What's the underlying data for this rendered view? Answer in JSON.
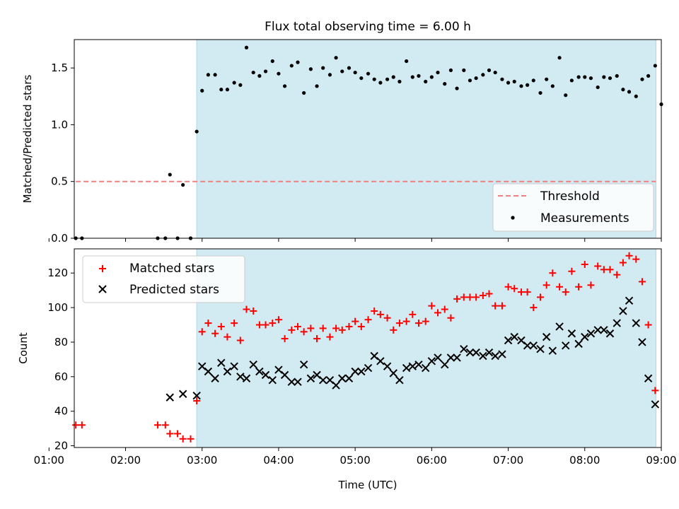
{
  "title": "Flux total observing time = 6.00 h",
  "colors": {
    "shade": "#add8e6",
    "threshold": "#f08080",
    "matched": "#ff0000",
    "predicted": "#000000",
    "measurement": "#000000"
  },
  "chart_data": [
    {
      "type": "scatter",
      "ylabel": "Matched/Predicted stars",
      "xlim": [
        1.33,
        9.0
      ],
      "ylim": [
        0,
        1.75
      ],
      "yticks": [
        "0.0",
        "0.5",
        "1.0",
        "1.5"
      ],
      "ytick_values": [
        0,
        0.5,
        1.0,
        1.5
      ],
      "shaded_region": [
        2.93,
        8.93
      ],
      "threshold": {
        "value": 0.5,
        "x": [
          1.35,
          8.93
        ]
      },
      "legend": {
        "position": "lower right",
        "entries": [
          "Threshold",
          "Measurements"
        ]
      },
      "series": [
        {
          "name": "Measurements",
          "marker": "dot",
          "points": [
            [
              1.35,
              0.0
            ],
            [
              1.43,
              0.0
            ],
            [
              2.42,
              0.0
            ],
            [
              2.52,
              0.0
            ],
            [
              2.58,
              0.56
            ],
            [
              2.68,
              0.0
            ],
            [
              2.75,
              0.47
            ],
            [
              2.85,
              0.0
            ],
            [
              2.93,
              0.94
            ],
            [
              3.0,
              1.3
            ],
            [
              3.08,
              1.44
            ],
            [
              3.17,
              1.44
            ],
            [
              3.25,
              1.31
            ],
            [
              3.33,
              1.31
            ],
            [
              3.42,
              1.37
            ],
            [
              3.5,
              1.35
            ],
            [
              3.58,
              1.68
            ],
            [
              3.67,
              1.46
            ],
            [
              3.75,
              1.43
            ],
            [
              3.83,
              1.47
            ],
            [
              3.92,
              1.56
            ],
            [
              4.0,
              1.45
            ],
            [
              4.08,
              1.34
            ],
            [
              4.17,
              1.52
            ],
            [
              4.25,
              1.55
            ],
            [
              4.33,
              1.28
            ],
            [
              4.42,
              1.49
            ],
            [
              4.5,
              1.34
            ],
            [
              4.58,
              1.5
            ],
            [
              4.67,
              1.44
            ],
            [
              4.75,
              1.59
            ],
            [
              4.83,
              1.47
            ],
            [
              4.92,
              1.5
            ],
            [
              5.0,
              1.46
            ],
            [
              5.08,
              1.41
            ],
            [
              5.17,
              1.45
            ],
            [
              5.25,
              1.4
            ],
            [
              5.33,
              1.37
            ],
            [
              5.42,
              1.4
            ],
            [
              5.5,
              1.42
            ],
            [
              5.58,
              1.38
            ],
            [
              5.67,
              1.56
            ],
            [
              5.75,
              1.42
            ],
            [
              5.83,
              1.43
            ],
            [
              5.92,
              1.38
            ],
            [
              6.0,
              1.42
            ],
            [
              6.08,
              1.46
            ],
            [
              6.17,
              1.36
            ],
            [
              6.25,
              1.48
            ],
            [
              6.33,
              1.32
            ],
            [
              6.42,
              1.48
            ],
            [
              6.5,
              1.39
            ],
            [
              6.58,
              1.41
            ],
            [
              6.67,
              1.44
            ],
            [
              6.75,
              1.48
            ],
            [
              6.83,
              1.46
            ],
            [
              6.92,
              1.4
            ],
            [
              7.0,
              1.37
            ],
            [
              7.08,
              1.38
            ],
            [
              7.17,
              1.34
            ],
            [
              7.25,
              1.35
            ],
            [
              7.33,
              1.39
            ],
            [
              7.42,
              1.28
            ],
            [
              7.5,
              1.4
            ],
            [
              7.58,
              1.34
            ],
            [
              7.67,
              1.59
            ],
            [
              7.75,
              1.26
            ],
            [
              7.83,
              1.39
            ],
            [
              7.92,
              1.42
            ],
            [
              8.0,
              1.42
            ],
            [
              8.08,
              1.41
            ],
            [
              8.17,
              1.33
            ],
            [
              8.25,
              1.42
            ],
            [
              8.33,
              1.41
            ],
            [
              8.42,
              1.43
            ],
            [
              8.5,
              1.31
            ],
            [
              8.58,
              1.29
            ],
            [
              8.67,
              1.25
            ],
            [
              8.75,
              1.4
            ],
            [
              8.83,
              1.43
            ],
            [
              8.92,
              1.52
            ],
            [
              9.0,
              1.18
            ]
          ]
        }
      ]
    },
    {
      "type": "scatter",
      "xlabel": "Time (UTC)",
      "ylabel": "Count",
      "xlim": [
        1.33,
        9.0
      ],
      "ylim": [
        19,
        134
      ],
      "xticks": [
        "01:00",
        "02:00",
        "03:00",
        "04:00",
        "05:00",
        "06:00",
        "07:00",
        "08:00",
        "09:00"
      ],
      "xtick_values": [
        1,
        2,
        3,
        4,
        5,
        6,
        7,
        8,
        9
      ],
      "yticks": [
        "20",
        "40",
        "60",
        "80",
        "100",
        "120"
      ],
      "ytick_values": [
        20,
        40,
        60,
        80,
        100,
        120
      ],
      "shaded_region": [
        2.93,
        8.93
      ],
      "legend": {
        "position": "upper left",
        "entries": [
          "Matched stars",
          "Predicted stars"
        ]
      },
      "series": [
        {
          "name": "Matched stars",
          "marker": "plus",
          "points": [
            [
              1.35,
              32
            ],
            [
              1.43,
              32
            ],
            [
              2.42,
              32
            ],
            [
              2.52,
              32
            ],
            [
              2.58,
              27
            ],
            [
              2.68,
              27
            ],
            [
              2.75,
              24
            ],
            [
              2.85,
              24
            ],
            [
              2.93,
              46
            ],
            [
              3.0,
              86
            ],
            [
              3.08,
              91
            ],
            [
              3.17,
              85
            ],
            [
              3.25,
              89
            ],
            [
              3.33,
              83
            ],
            [
              3.42,
              91
            ],
            [
              3.5,
              81
            ],
            [
              3.58,
              99
            ],
            [
              3.67,
              98
            ],
            [
              3.75,
              90
            ],
            [
              3.83,
              90
            ],
            [
              3.92,
              91
            ],
            [
              4.0,
              93
            ],
            [
              4.08,
              82
            ],
            [
              4.17,
              87
            ],
            [
              4.25,
              89
            ],
            [
              4.33,
              86
            ],
            [
              4.42,
              88
            ],
            [
              4.5,
              82
            ],
            [
              4.58,
              88
            ],
            [
              4.67,
              83
            ],
            [
              4.75,
              88
            ],
            [
              4.83,
              87
            ],
            [
              4.92,
              89
            ],
            [
              5.0,
              92
            ],
            [
              5.08,
              89
            ],
            [
              5.17,
              93
            ],
            [
              5.25,
              98
            ],
            [
              5.33,
              96
            ],
            [
              5.42,
              94
            ],
            [
              5.5,
              87
            ],
            [
              5.58,
              91
            ],
            [
              5.67,
              92
            ],
            [
              5.75,
              96
            ],
            [
              5.83,
              91
            ],
            [
              5.92,
              92
            ],
            [
              6.0,
              101
            ],
            [
              6.08,
              97
            ],
            [
              6.17,
              99
            ],
            [
              6.25,
              94
            ],
            [
              6.33,
              105
            ],
            [
              6.42,
              106
            ],
            [
              6.5,
              106
            ],
            [
              6.58,
              106
            ],
            [
              6.67,
              107
            ],
            [
              6.75,
              108
            ],
            [
              6.83,
              101
            ],
            [
              6.92,
              101
            ],
            [
              7.0,
              112
            ],
            [
              7.08,
              111
            ],
            [
              7.17,
              109
            ],
            [
              7.25,
              109
            ],
            [
              7.33,
              100
            ],
            [
              7.42,
              106
            ],
            [
              7.5,
              113
            ],
            [
              7.58,
              120
            ],
            [
              7.67,
              112
            ],
            [
              7.75,
              109
            ],
            [
              7.83,
              121
            ],
            [
              7.92,
              112
            ],
            [
              8.0,
              125
            ],
            [
              8.08,
              113
            ],
            [
              8.17,
              124
            ],
            [
              8.25,
              122
            ],
            [
              8.33,
              122
            ],
            [
              8.42,
              119
            ],
            [
              8.5,
              126
            ],
            [
              8.58,
              130
            ],
            [
              8.67,
              128
            ],
            [
              8.75,
              115
            ],
            [
              8.83,
              90
            ],
            [
              8.92,
              52
            ]
          ]
        },
        {
          "name": "Predicted stars",
          "marker": "x",
          "points": [
            [
              2.58,
              48
            ],
            [
              2.75,
              50
            ],
            [
              2.93,
              49
            ],
            [
              3.0,
              66
            ],
            [
              3.08,
              63
            ],
            [
              3.17,
              59
            ],
            [
              3.25,
              68
            ],
            [
              3.33,
              63
            ],
            [
              3.42,
              66
            ],
            [
              3.5,
              60
            ],
            [
              3.58,
              59
            ],
            [
              3.67,
              67
            ],
            [
              3.75,
              63
            ],
            [
              3.83,
              61
            ],
            [
              3.92,
              58
            ],
            [
              4.0,
              64
            ],
            [
              4.08,
              61
            ],
            [
              4.17,
              57
            ],
            [
              4.25,
              57
            ],
            [
              4.33,
              67
            ],
            [
              4.42,
              59
            ],
            [
              4.5,
              61
            ],
            [
              4.58,
              58
            ],
            [
              4.67,
              58
            ],
            [
              4.75,
              55
            ],
            [
              4.83,
              59
            ],
            [
              4.92,
              59
            ],
            [
              5.0,
              63
            ],
            [
              5.08,
              63
            ],
            [
              5.17,
              65
            ],
            [
              5.25,
              72
            ],
            [
              5.33,
              69
            ],
            [
              5.42,
              66
            ],
            [
              5.5,
              62
            ],
            [
              5.58,
              58
            ],
            [
              5.67,
              65
            ],
            [
              5.75,
              66
            ],
            [
              5.83,
              67
            ],
            [
              5.92,
              65
            ],
            [
              6.0,
              69
            ],
            [
              6.08,
              71
            ],
            [
              6.17,
              67
            ],
            [
              6.25,
              71
            ],
            [
              6.33,
              71
            ],
            [
              6.42,
              76
            ],
            [
              6.5,
              74
            ],
            [
              6.58,
              74
            ],
            [
              6.67,
              72
            ],
            [
              6.75,
              74
            ],
            [
              6.83,
              72
            ],
            [
              6.92,
              73
            ],
            [
              7.0,
              81
            ],
            [
              7.08,
              83
            ],
            [
              7.17,
              81
            ],
            [
              7.25,
              78
            ],
            [
              7.33,
              78
            ],
            [
              7.42,
              76
            ],
            [
              7.5,
              83
            ],
            [
              7.58,
              75
            ],
            [
              7.67,
              89
            ],
            [
              7.75,
              78
            ],
            [
              7.83,
              85
            ],
            [
              7.92,
              79
            ],
            [
              8.0,
              83
            ],
            [
              8.08,
              85
            ],
            [
              8.17,
              87
            ],
            [
              8.25,
              87
            ],
            [
              8.33,
              85
            ],
            [
              8.42,
              91
            ],
            [
              8.5,
              98
            ],
            [
              8.58,
              104
            ],
            [
              8.67,
              91
            ],
            [
              8.75,
              80
            ],
            [
              8.83,
              59
            ],
            [
              8.92,
              44
            ]
          ]
        }
      ]
    }
  ]
}
